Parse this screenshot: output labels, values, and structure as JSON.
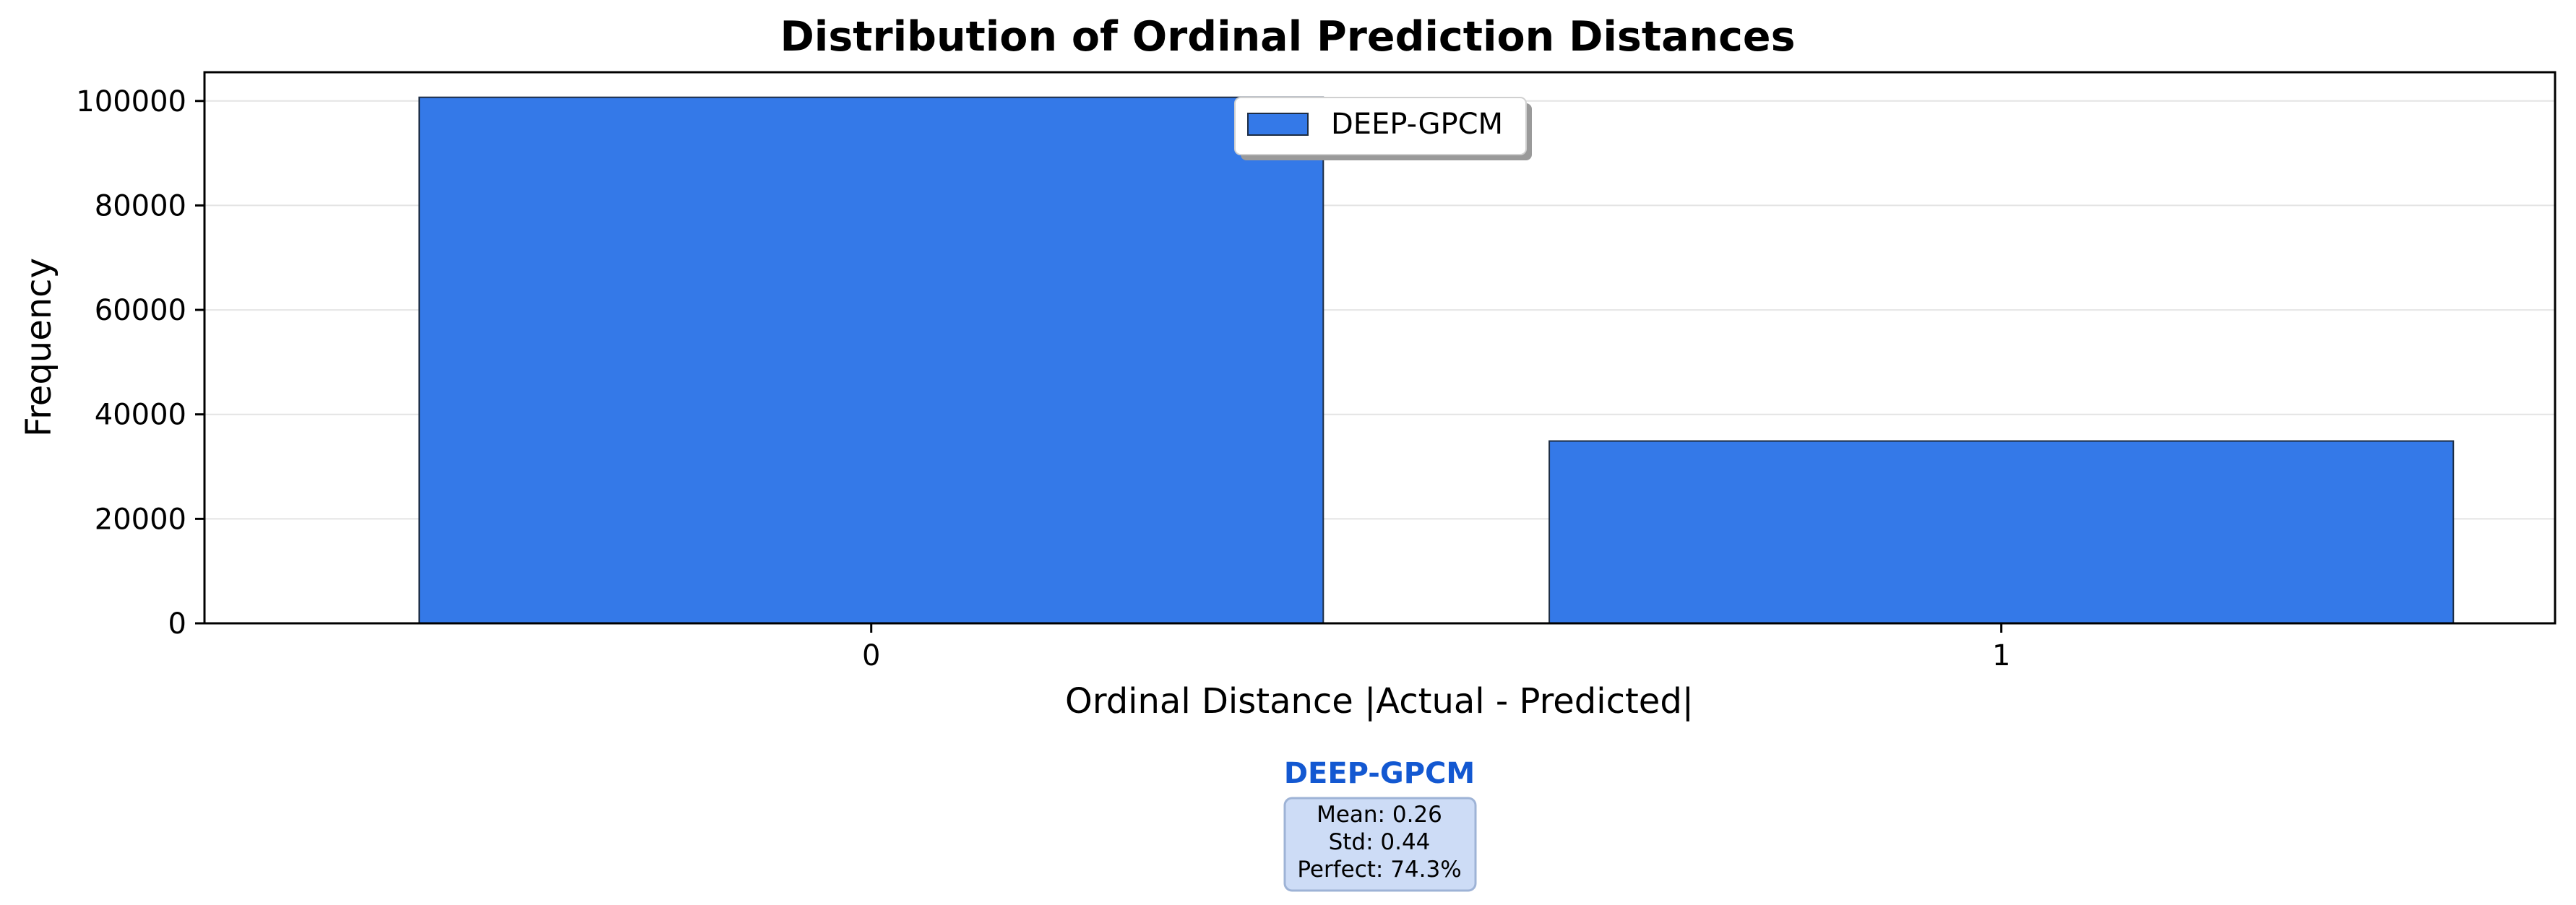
{
  "chart_data": {
    "type": "bar",
    "title": "Distribution of Ordinal Prediction Distances",
    "xlabel": "Ordinal Distance |Actual - Predicted|",
    "ylabel": "Frequency",
    "categories": [
      "0",
      "1"
    ],
    "series": [
      {
        "name": "DEEP-GPCM",
        "values": [
          100700,
          34900
        ],
        "color": "#3479e8"
      }
    ],
    "ylim": [
      0,
      105500
    ],
    "yticks": [
      0,
      20000,
      40000,
      60000,
      80000,
      100000
    ],
    "ytick_labels": [
      "0",
      "20000",
      "40000",
      "60000",
      "80000",
      "100000"
    ],
    "grid": "horizontal",
    "legend_position": "top-center",
    "annotation": {
      "model": "DEEP-GPCM",
      "lines": [
        "Mean: 0.26",
        "Std: 0.44",
        "Perfect: 74.3%"
      ],
      "model_color": "#1358d1",
      "box_fill": "#cddcf6",
      "box_stroke": "#9eb3d6"
    }
  }
}
